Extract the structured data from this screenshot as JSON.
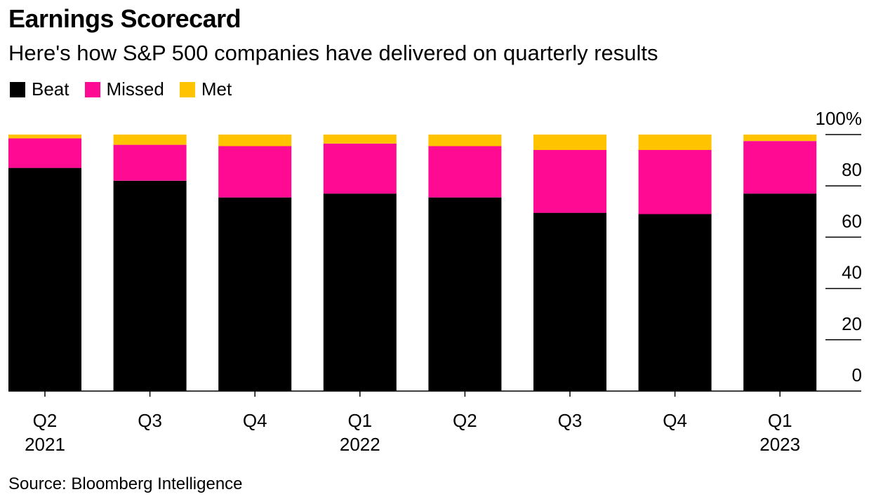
{
  "title": "Earnings Scorecard",
  "subtitle": "Here's how S&P 500 companies have delivered on quarterly results",
  "source": "Source: Bloomberg Intelligence",
  "colors": {
    "beat": "#000000",
    "missed": "#ff0a93",
    "met": "#ffc300"
  },
  "chart_data": {
    "type": "bar",
    "stacked": true,
    "title": "Earnings Scorecard",
    "subtitle": "Here's how S&P 500 companies have delivered on quarterly results",
    "xlabel": "",
    "ylabel": "",
    "ylim": [
      0,
      100
    ],
    "y_ticks": [
      "0",
      "20",
      "40",
      "60",
      "80",
      "100%"
    ],
    "y_tick_values": [
      0,
      20,
      40,
      60,
      80,
      100
    ],
    "y_axis_position": "right",
    "grid": false,
    "legend_position": "top-left",
    "categories": [
      "Q2 2021",
      "Q3 2021",
      "Q4 2021",
      "Q1 2022",
      "Q2 2022",
      "Q3 2022",
      "Q4 2022",
      "Q1 2023"
    ],
    "category_labels": [
      {
        "quarter": "Q2",
        "year": "2021"
      },
      {
        "quarter": "Q3",
        "year": ""
      },
      {
        "quarter": "Q4",
        "year": ""
      },
      {
        "quarter": "Q1",
        "year": "2022"
      },
      {
        "quarter": "Q2",
        "year": ""
      },
      {
        "quarter": "Q3",
        "year": ""
      },
      {
        "quarter": "Q4",
        "year": ""
      },
      {
        "quarter": "Q1",
        "year": "2023"
      }
    ],
    "series": [
      {
        "name": "Beat",
        "color": "#000000",
        "values": [
          87,
          82,
          75.5,
          77,
          75.5,
          69.5,
          69,
          77
        ]
      },
      {
        "name": "Missed",
        "color": "#ff0a93",
        "values": [
          11.5,
          14,
          20,
          19.5,
          20,
          24.5,
          25,
          20.5
        ]
      },
      {
        "name": "Met",
        "color": "#ffc300",
        "values": [
          1.5,
          4,
          4.5,
          3.5,
          4.5,
          6,
          6,
          2.5
        ]
      }
    ]
  }
}
